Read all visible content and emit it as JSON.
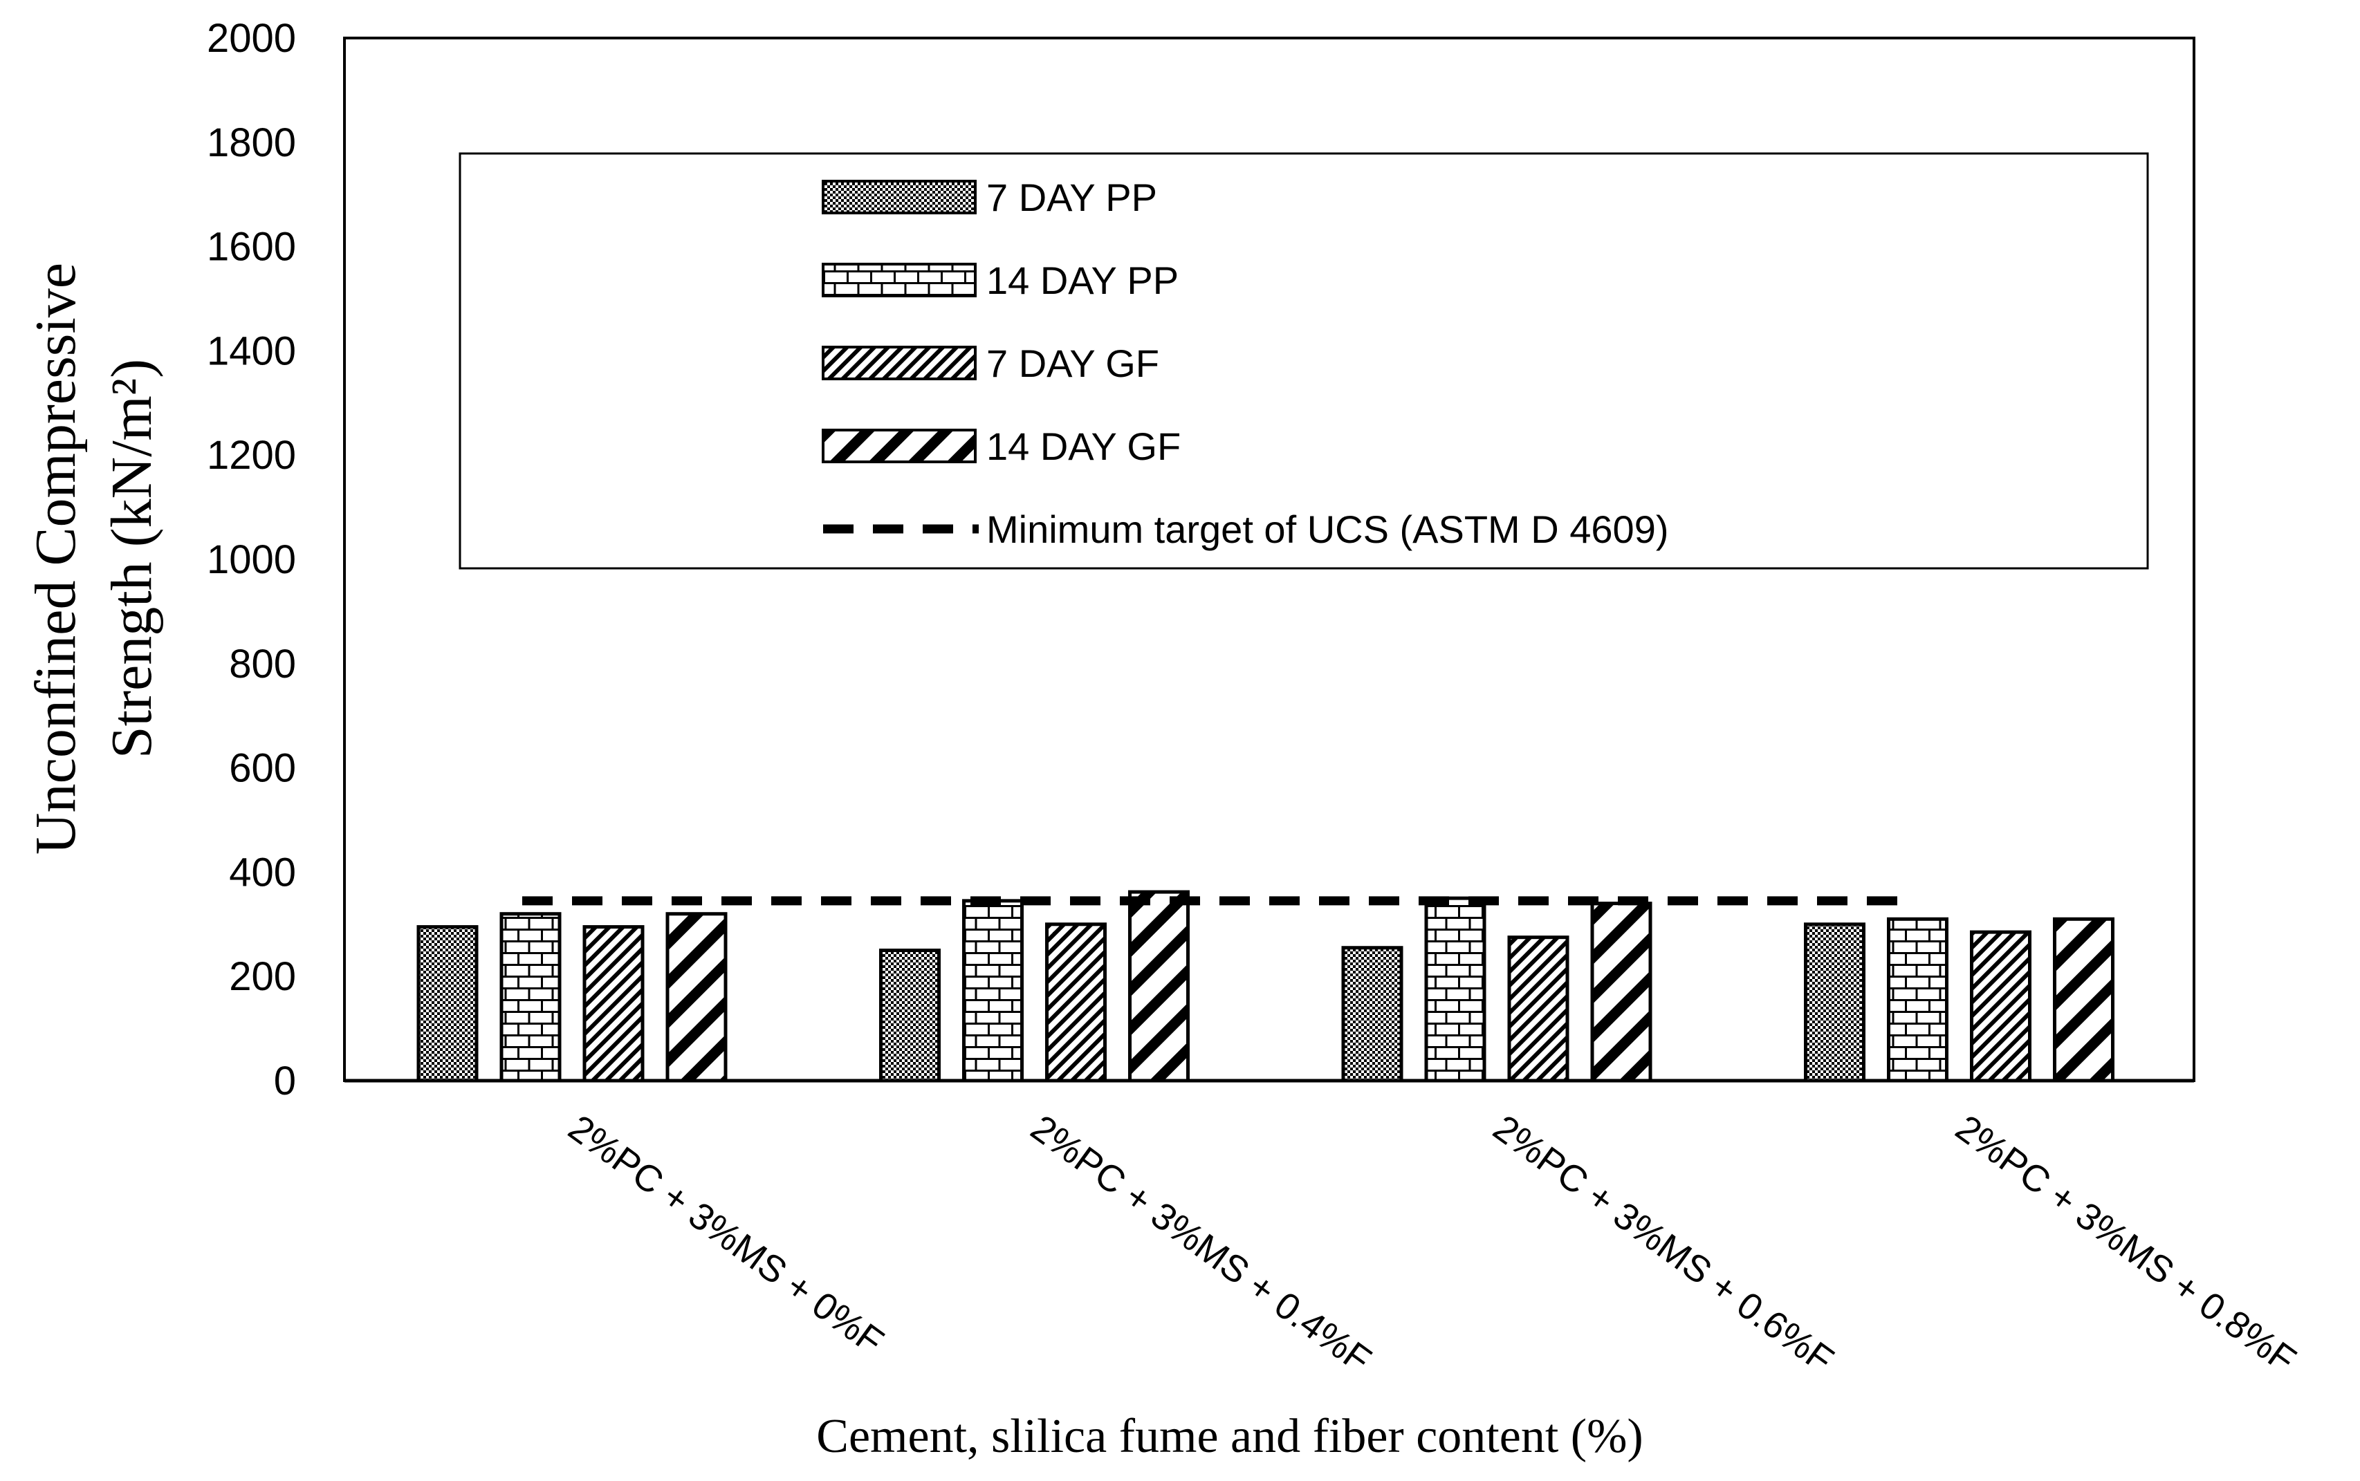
{
  "chart_data": {
    "type": "bar",
    "categories": [
      "2%PC + 3%MS + 0%F",
      "2%PC + 3%MS + 0.4%F",
      "2%PC + 3%MS + 0.6%F",
      "2%PC + 3%MS + 0.8%F"
    ],
    "series": [
      {
        "name": "7 DAY PP",
        "values": [
          295,
          250,
          255,
          300
        ],
        "pattern": "dots"
      },
      {
        "name": "14 DAY PP",
        "values": [
          320,
          345,
          350,
          310
        ],
        "pattern": "bricks"
      },
      {
        "name": "7 DAY GF",
        "values": [
          295,
          300,
          275,
          285
        ],
        "pattern": "narrow-diag"
      },
      {
        "name": "14 DAY GF",
        "values": [
          320,
          362,
          340,
          310
        ],
        "pattern": "wide-diag"
      }
    ],
    "reference_line": {
      "name": "Minimum target of UCS (ASTM D 4609)",
      "value": 345,
      "style": "dashed"
    },
    "xlabel": "Cement, slilica fume and fiber content (%)",
    "ylabel_line1": "Unconfined Compressive",
    "ylabel_line2": "Strength (kN/m²)",
    "ylim": [
      0,
      2000
    ],
    "yticks": [
      "0",
      "200",
      "400",
      "600",
      "800",
      "1000",
      "1200",
      "1400",
      "1600",
      "1800",
      "2000"
    ],
    "grid": false,
    "legend_position": "top-center inside plot",
    "colors": {
      "bar_stroke": "#000000",
      "bar_fill": "#ffffff",
      "line": "#000000"
    }
  }
}
